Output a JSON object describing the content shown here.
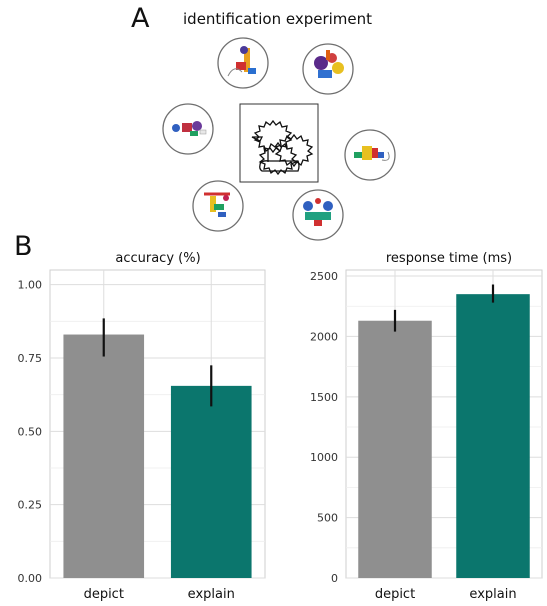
{
  "panel_a": {
    "letter": "A",
    "title": "identification experiment"
  },
  "panel_b": {
    "letter": "B"
  },
  "colors": {
    "depict": "#8f8f8f",
    "explain": "#0b766d",
    "error_bar": "#111111",
    "grid": "#dddddd",
    "panel_border": "#cfcfcf",
    "circle_border": "#6f6f6f"
  },
  "stimuli": {
    "center_icon": "sketch-drawing-icon",
    "option_icons": [
      "object-option-1-icon",
      "object-option-2-icon",
      "object-option-3-icon",
      "object-option-4-icon",
      "object-option-5-icon",
      "object-option-6-icon"
    ]
  },
  "chart_data": [
    {
      "type": "bar",
      "title": "accuracy (%)",
      "categories": [
        "depict",
        "explain"
      ],
      "values": [
        0.83,
        0.655
      ],
      "error_low": [
        0.755,
        0.585
      ],
      "error_high": [
        0.885,
        0.725
      ],
      "ylim": [
        0,
        1.05
      ],
      "yticks": [
        0,
        0.25,
        0.5,
        0.75,
        1.0
      ],
      "ytick_labels": [
        "0.00",
        "0.25",
        "0.50",
        "0.75",
        "1.00"
      ],
      "grid": true,
      "xlabel": "",
      "ylabel": ""
    },
    {
      "type": "bar",
      "title": "response time (ms)",
      "categories": [
        "depict",
        "explain"
      ],
      "values": [
        2130,
        2350
      ],
      "error_low": [
        2040,
        2280
      ],
      "error_high": [
        2220,
        2430
      ],
      "ylim": [
        0,
        2550
      ],
      "yticks": [
        0,
        500,
        1000,
        1500,
        2000,
        2500
      ],
      "ytick_labels": [
        "0",
        "500",
        "1000",
        "1500",
        "2000",
        "2500"
      ],
      "grid": true,
      "xlabel": "",
      "ylabel": ""
    }
  ]
}
